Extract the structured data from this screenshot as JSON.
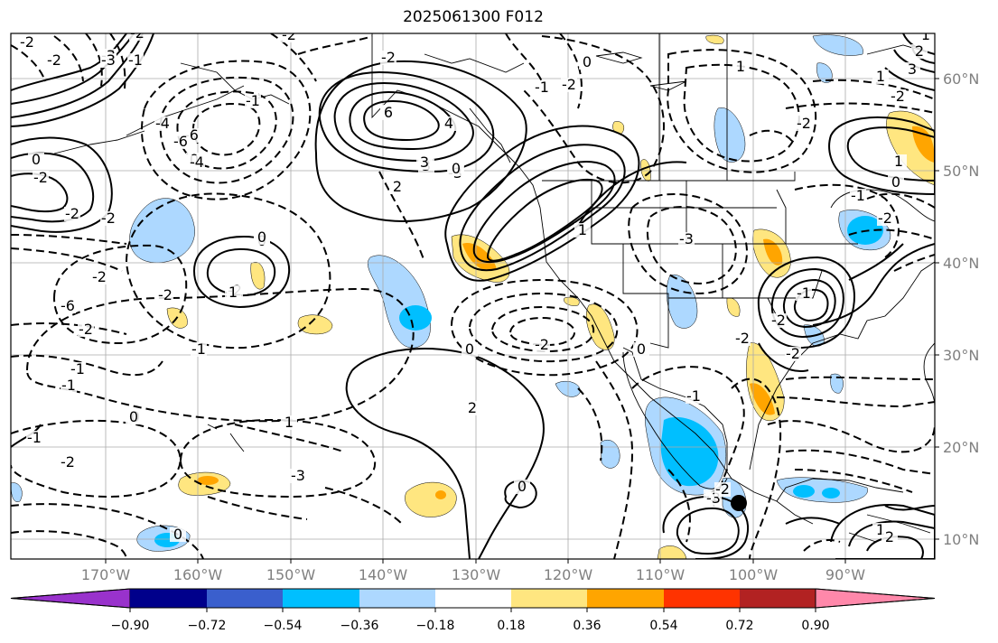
{
  "title": "2025061300 F012",
  "map": {
    "lon_labels": [
      "170°W",
      "160°W",
      "150°W",
      "140°W",
      "130°W",
      "120°W",
      "110°W",
      "100°W",
      "90°W"
    ],
    "lat_labels": [
      "60°N",
      "50°N",
      "40°N",
      "30°N",
      "20°N",
      "10°N"
    ],
    "contour_labels": [
      "-2",
      "-2",
      "-3",
      "-1",
      "-2",
      "0",
      "6",
      "3",
      "2",
      "-3",
      "0",
      "-2",
      "-6",
      "-1",
      "0",
      "1",
      "-3",
      "-2",
      "-1",
      "0",
      "-1",
      "-2",
      "0",
      "1",
      "1",
      "-2",
      "-2",
      "1",
      "0",
      "-3",
      "-2",
      "2",
      "0",
      "-1",
      "-1",
      "-2",
      "-2",
      "1",
      "0",
      "-1",
      "-2",
      "0",
      "-1",
      "-2",
      "-2",
      "-6",
      "-4",
      "-2",
      "-1",
      "-2",
      "-2",
      "1",
      "2",
      "3",
      "4",
      "6",
      "-2",
      "0",
      "1",
      "2",
      "3",
      "1",
      "2",
      "0",
      "-2",
      "-3",
      "-1",
      "-2",
      "-4",
      "-6",
      "0",
      "-3",
      "-2",
      "-1",
      "-2",
      "0"
    ],
    "feature_labels": {
      "hurricane_center": "storm-center"
    }
  },
  "colorbar": {
    "labels": [
      "−0.90",
      "−0.72",
      "−0.54",
      "−0.36",
      "−0.18",
      "0.18",
      "0.36",
      "0.54",
      "0.72",
      "0.90"
    ],
    "colors": [
      "#9932cc",
      "#00008b",
      "#3a5fcd",
      "#00bfff",
      "#add8ff",
      "#ffffff",
      "#ffe680",
      "#ffa500",
      "#ff3300",
      "#b22222",
      "#ff88aa"
    ]
  }
}
